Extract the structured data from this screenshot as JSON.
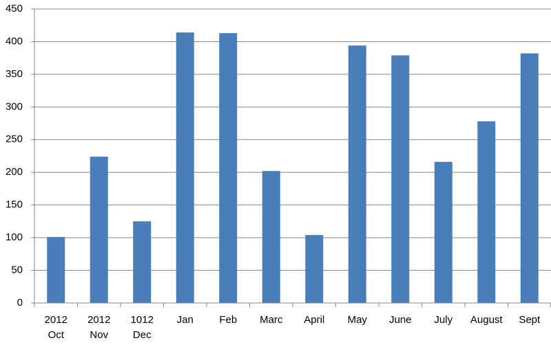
{
  "chart_data": {
    "type": "bar",
    "categories": [
      "2012 Oct",
      "2012 Nov",
      "1012 Dec",
      "Jan",
      "Feb",
      "Marc",
      "April",
      "May",
      "June",
      "July",
      "August",
      "Sept"
    ],
    "values": [
      101,
      224,
      125,
      414,
      413,
      202,
      104,
      394,
      379,
      216,
      278,
      382
    ],
    "color": "#4a7ebb",
    "ylim": [
      0,
      450
    ],
    "yticks": [
      0,
      50,
      100,
      150,
      200,
      250,
      300,
      350,
      400,
      450
    ],
    "grid": true
  }
}
